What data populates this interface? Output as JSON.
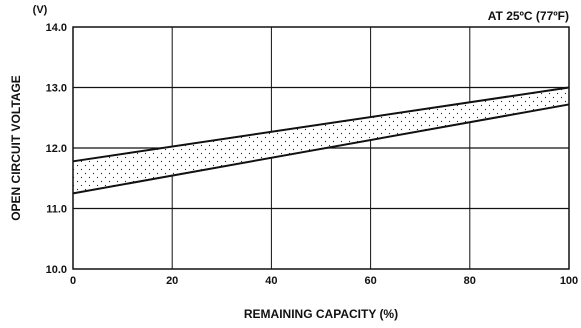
{
  "chart_data": {
    "type": "area",
    "title": "",
    "annotation": "AT 25ºC (77ºF)",
    "xlabel": "REMAINING CAPACITY (%)",
    "ylabel": "OPEN CIRCUIT VOLTAGE",
    "yunit": "(V)",
    "xlim": [
      0,
      100
    ],
    "ylim": [
      10.0,
      14.0
    ],
    "xticks": [
      "0",
      "20",
      "40",
      "60",
      "80",
      "100"
    ],
    "xtick_values": [
      0,
      20,
      40,
      60,
      80,
      100
    ],
    "yticks": [
      "10.0",
      "11.0",
      "12.0",
      "13.0",
      "14.0"
    ],
    "ytick_values": [
      10.0,
      11.0,
      12.0,
      13.0,
      14.0
    ],
    "grid": true,
    "series": [
      {
        "x": [
          0,
          100
        ],
        "values": [
          11.78,
          13.0
        ]
      },
      {
        "x": [
          0,
          100
        ],
        "values": [
          11.25,
          12.72
        ]
      }
    ],
    "band_fill": "stippled"
  }
}
